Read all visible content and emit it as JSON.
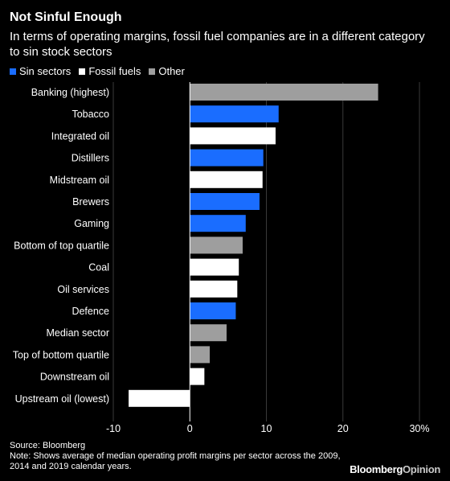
{
  "title": "Not Sinful Enough",
  "subtitle": "In terms of operating margins, fossil fuel companies are in a different category to sin stock sectors",
  "legend": [
    {
      "label": "Sin sectors",
      "color": "#1a6dff"
    },
    {
      "label": "Fossil fuels",
      "color": "#ffffff"
    },
    {
      "label": "Other",
      "color": "#9e9e9e"
    }
  ],
  "chart_data": {
    "type": "bar",
    "orientation": "horizontal",
    "categories": [
      "Banking (highest)",
      "Tobacco",
      "Integrated oil",
      "Distillers",
      "Midstream oil",
      "Brewers",
      "Gaming",
      "Bottom of top quartile",
      "Coal",
      "Oil services",
      "Defence",
      "Median sector",
      "Top of bottom quartile",
      "Downstream oil",
      "Upstream oil (lowest)"
    ],
    "values": [
      24.6,
      11.6,
      11.2,
      9.6,
      9.5,
      9.1,
      7.3,
      6.9,
      6.4,
      6.2,
      6.0,
      4.8,
      2.6,
      1.9,
      -8.0
    ],
    "groups": [
      "Other",
      "Sin sectors",
      "Fossil fuels",
      "Sin sectors",
      "Fossil fuels",
      "Sin sectors",
      "Sin sectors",
      "Other",
      "Fossil fuels",
      "Fossil fuels",
      "Sin sectors",
      "Other",
      "Other",
      "Fossil fuels",
      "Fossil fuels"
    ],
    "xlim": [
      -10,
      30
    ],
    "xticks": [
      -10,
      0,
      10,
      20,
      30
    ],
    "xtick_labels": [
      "-10",
      "0",
      "10",
      "20",
      "30%"
    ],
    "grid": true
  },
  "footer": {
    "source": "Source: Bloomberg",
    "note": "Note: Shows average of median operating profit margins per sector across the 2009, 2014 and 2019 calendar years."
  },
  "logo": {
    "brand": "Bloomberg",
    "suffix": "Opinion"
  }
}
